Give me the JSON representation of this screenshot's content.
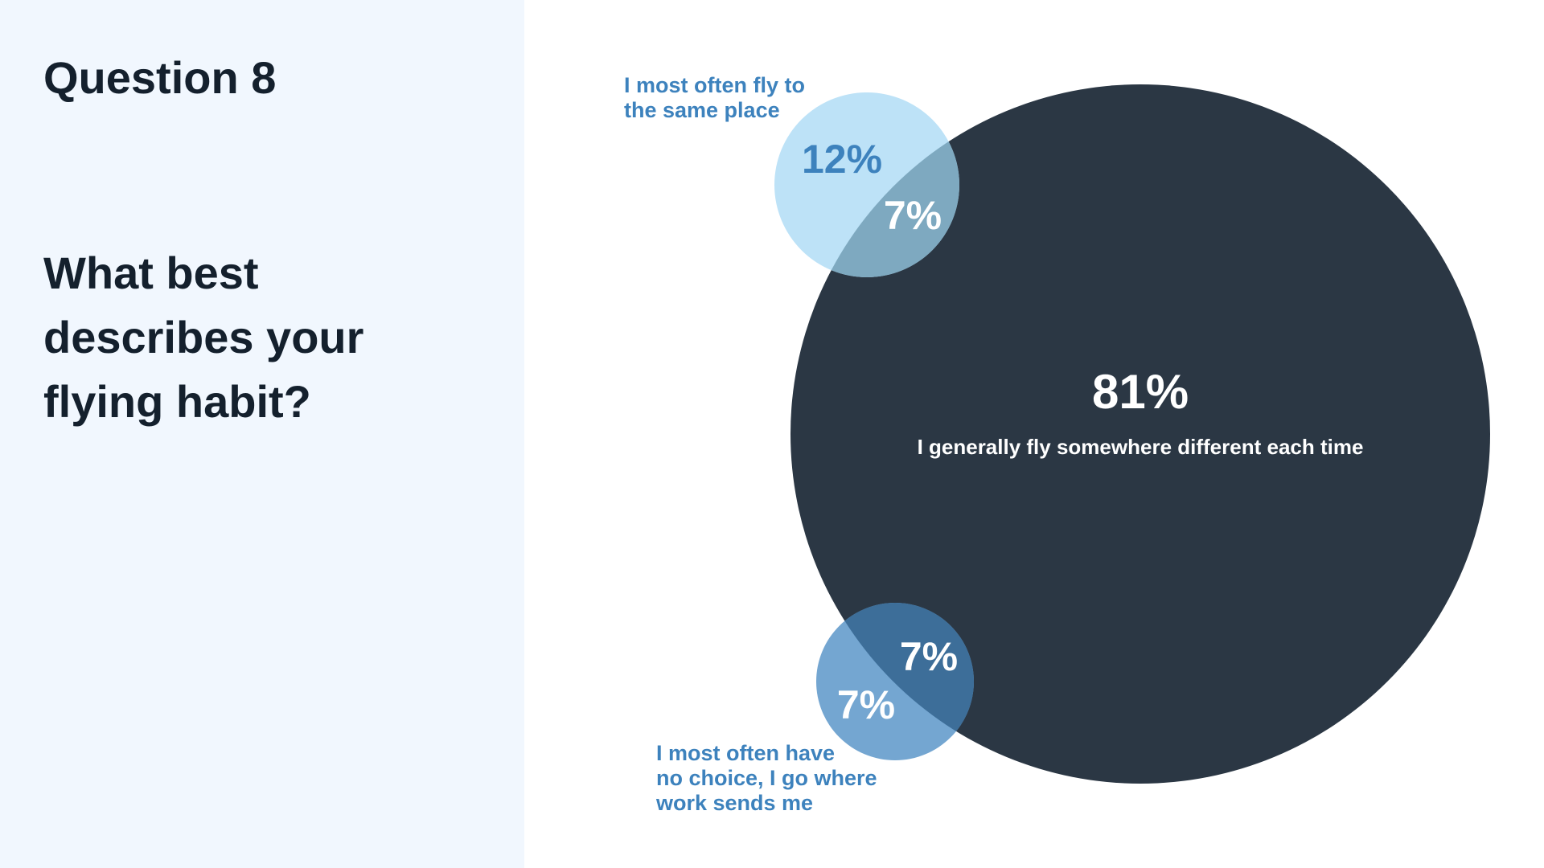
{
  "slide": {
    "question_number": "Question 8",
    "question_text": "What best describes your flying habit?"
  },
  "colors": {
    "panel_bg": "#f1f7fe",
    "main_circle": "#2b3744",
    "top_circle": "#bde2f7",
    "top_overlap": "#7ea9c0",
    "bottom_circle": "#74a6d1",
    "bottom_overlap": "#3d6e99",
    "label_blue": "#3d82bd",
    "dark_text": "#14202d"
  },
  "chart_data": {
    "type": "venn",
    "title": "",
    "sets": [
      {
        "name": "I generally fly somewhere different each time",
        "value_label": "81%",
        "value": 81
      },
      {
        "name": "I most often fly to the same place",
        "name_lines": [
          "I most often fly to",
          "the same place"
        ],
        "value_label": "12%",
        "value": 12
      },
      {
        "name": "I most often have no choice, I go where work sends me",
        "name_lines": [
          "I most often have",
          "no choice, I go where",
          "work sends me"
        ],
        "value_label": "7%",
        "value": 7
      }
    ],
    "overlaps": [
      {
        "sets": [
          "I most often fly to the same place",
          "I generally fly somewhere different each time"
        ],
        "value_label": "7%",
        "value": 7
      },
      {
        "sets": [
          "I most often have no choice, I go where work sends me",
          "I generally fly somewhere different each time"
        ],
        "value_label": "7%",
        "value": 7
      }
    ]
  }
}
